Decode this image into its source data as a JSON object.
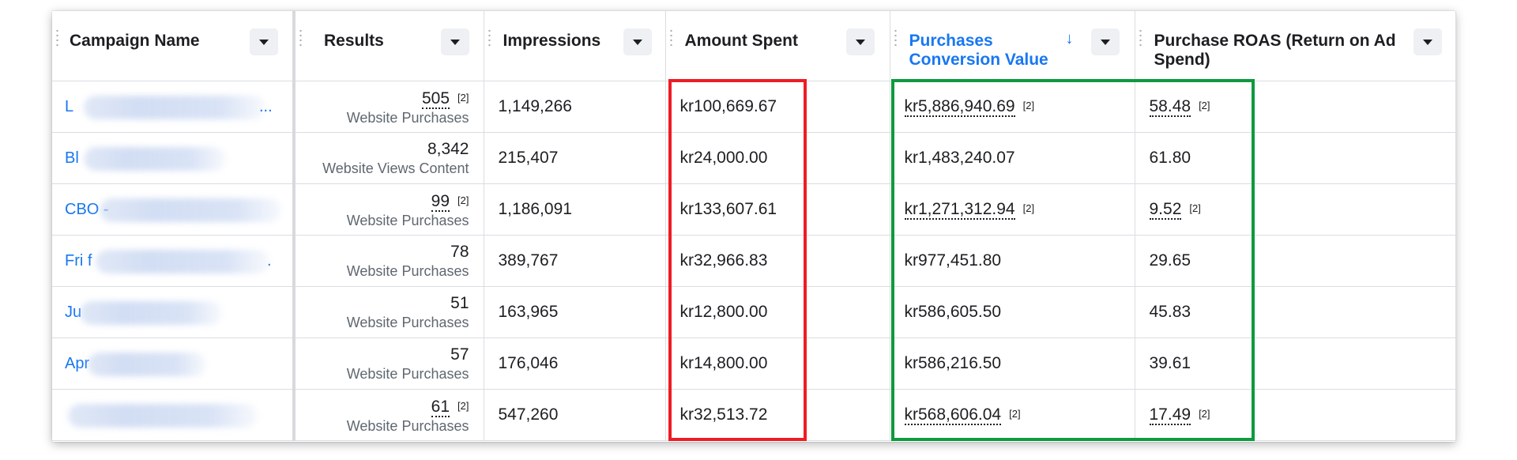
{
  "columns": [
    {
      "label": "Campaign Name"
    },
    {
      "label": "Results"
    },
    {
      "label": "Impressions"
    },
    {
      "label": "Amount Spent"
    },
    {
      "label": "Purchases Conversion Value",
      "sorted": "descending"
    },
    {
      "label": "Purchase ROAS (Return on Ad Spend)"
    }
  ],
  "footnote": "[2]",
  "rows": [
    {
      "name": "L",
      "name_suffix": "...",
      "results": "505",
      "results_fn": true,
      "results_type": "Website Purchases",
      "impressions": "1,149,266",
      "spent": "kr100,669.67",
      "conv_value": "kr5,886,940.69",
      "conv_fn": true,
      "roas": "58.48",
      "roas_fn": true
    },
    {
      "name": "Bl",
      "name_suffix": "",
      "results": "8,342",
      "results_fn": false,
      "results_type": "Website Views Content",
      "impressions": "215,407",
      "spent": "kr24,000.00",
      "conv_value": "kr1,483,240.07",
      "conv_fn": false,
      "roas": "61.80",
      "roas_fn": false
    },
    {
      "name": "CBO -",
      "name_suffix": "",
      "results": "99",
      "results_fn": true,
      "results_type": "Website Purchases",
      "impressions": "1,186,091",
      "spent": "kr133,607.61",
      "conv_value": "kr1,271,312.94",
      "conv_fn": true,
      "roas": "9.52",
      "roas_fn": true
    },
    {
      "name": "Fri f",
      "name_suffix": ".",
      "results": "78",
      "results_fn": false,
      "results_type": "Website Purchases",
      "impressions": "389,767",
      "spent": "kr32,966.83",
      "conv_value": "kr977,451.80",
      "conv_fn": false,
      "roas": "29.65",
      "roas_fn": false
    },
    {
      "name": "Ju",
      "name_suffix": "",
      "results": "51",
      "results_fn": false,
      "results_type": "Website Purchases",
      "impressions": "163,965",
      "spent": "kr12,800.00",
      "conv_value": "kr586,605.50",
      "conv_fn": false,
      "roas": "45.83",
      "roas_fn": false
    },
    {
      "name": "Apr",
      "name_suffix": "",
      "results": "57",
      "results_fn": false,
      "results_type": "Website Purchases",
      "impressions": "176,046",
      "spent": "kr14,800.00",
      "conv_value": "kr586,216.50",
      "conv_fn": false,
      "roas": "39.61",
      "roas_fn": false
    },
    {
      "name": "",
      "name_suffix": "",
      "results": "61",
      "results_fn": true,
      "results_type": "Website Purchases",
      "impressions": "547,260",
      "spent": "kr32,513.72",
      "conv_value": "kr568,606.04",
      "conv_fn": true,
      "roas": "17.49",
      "roas_fn": true
    }
  ],
  "highlight_colors": {
    "amount_spent": "#ee1c24",
    "conversion_roas": "#0e9a3e"
  }
}
